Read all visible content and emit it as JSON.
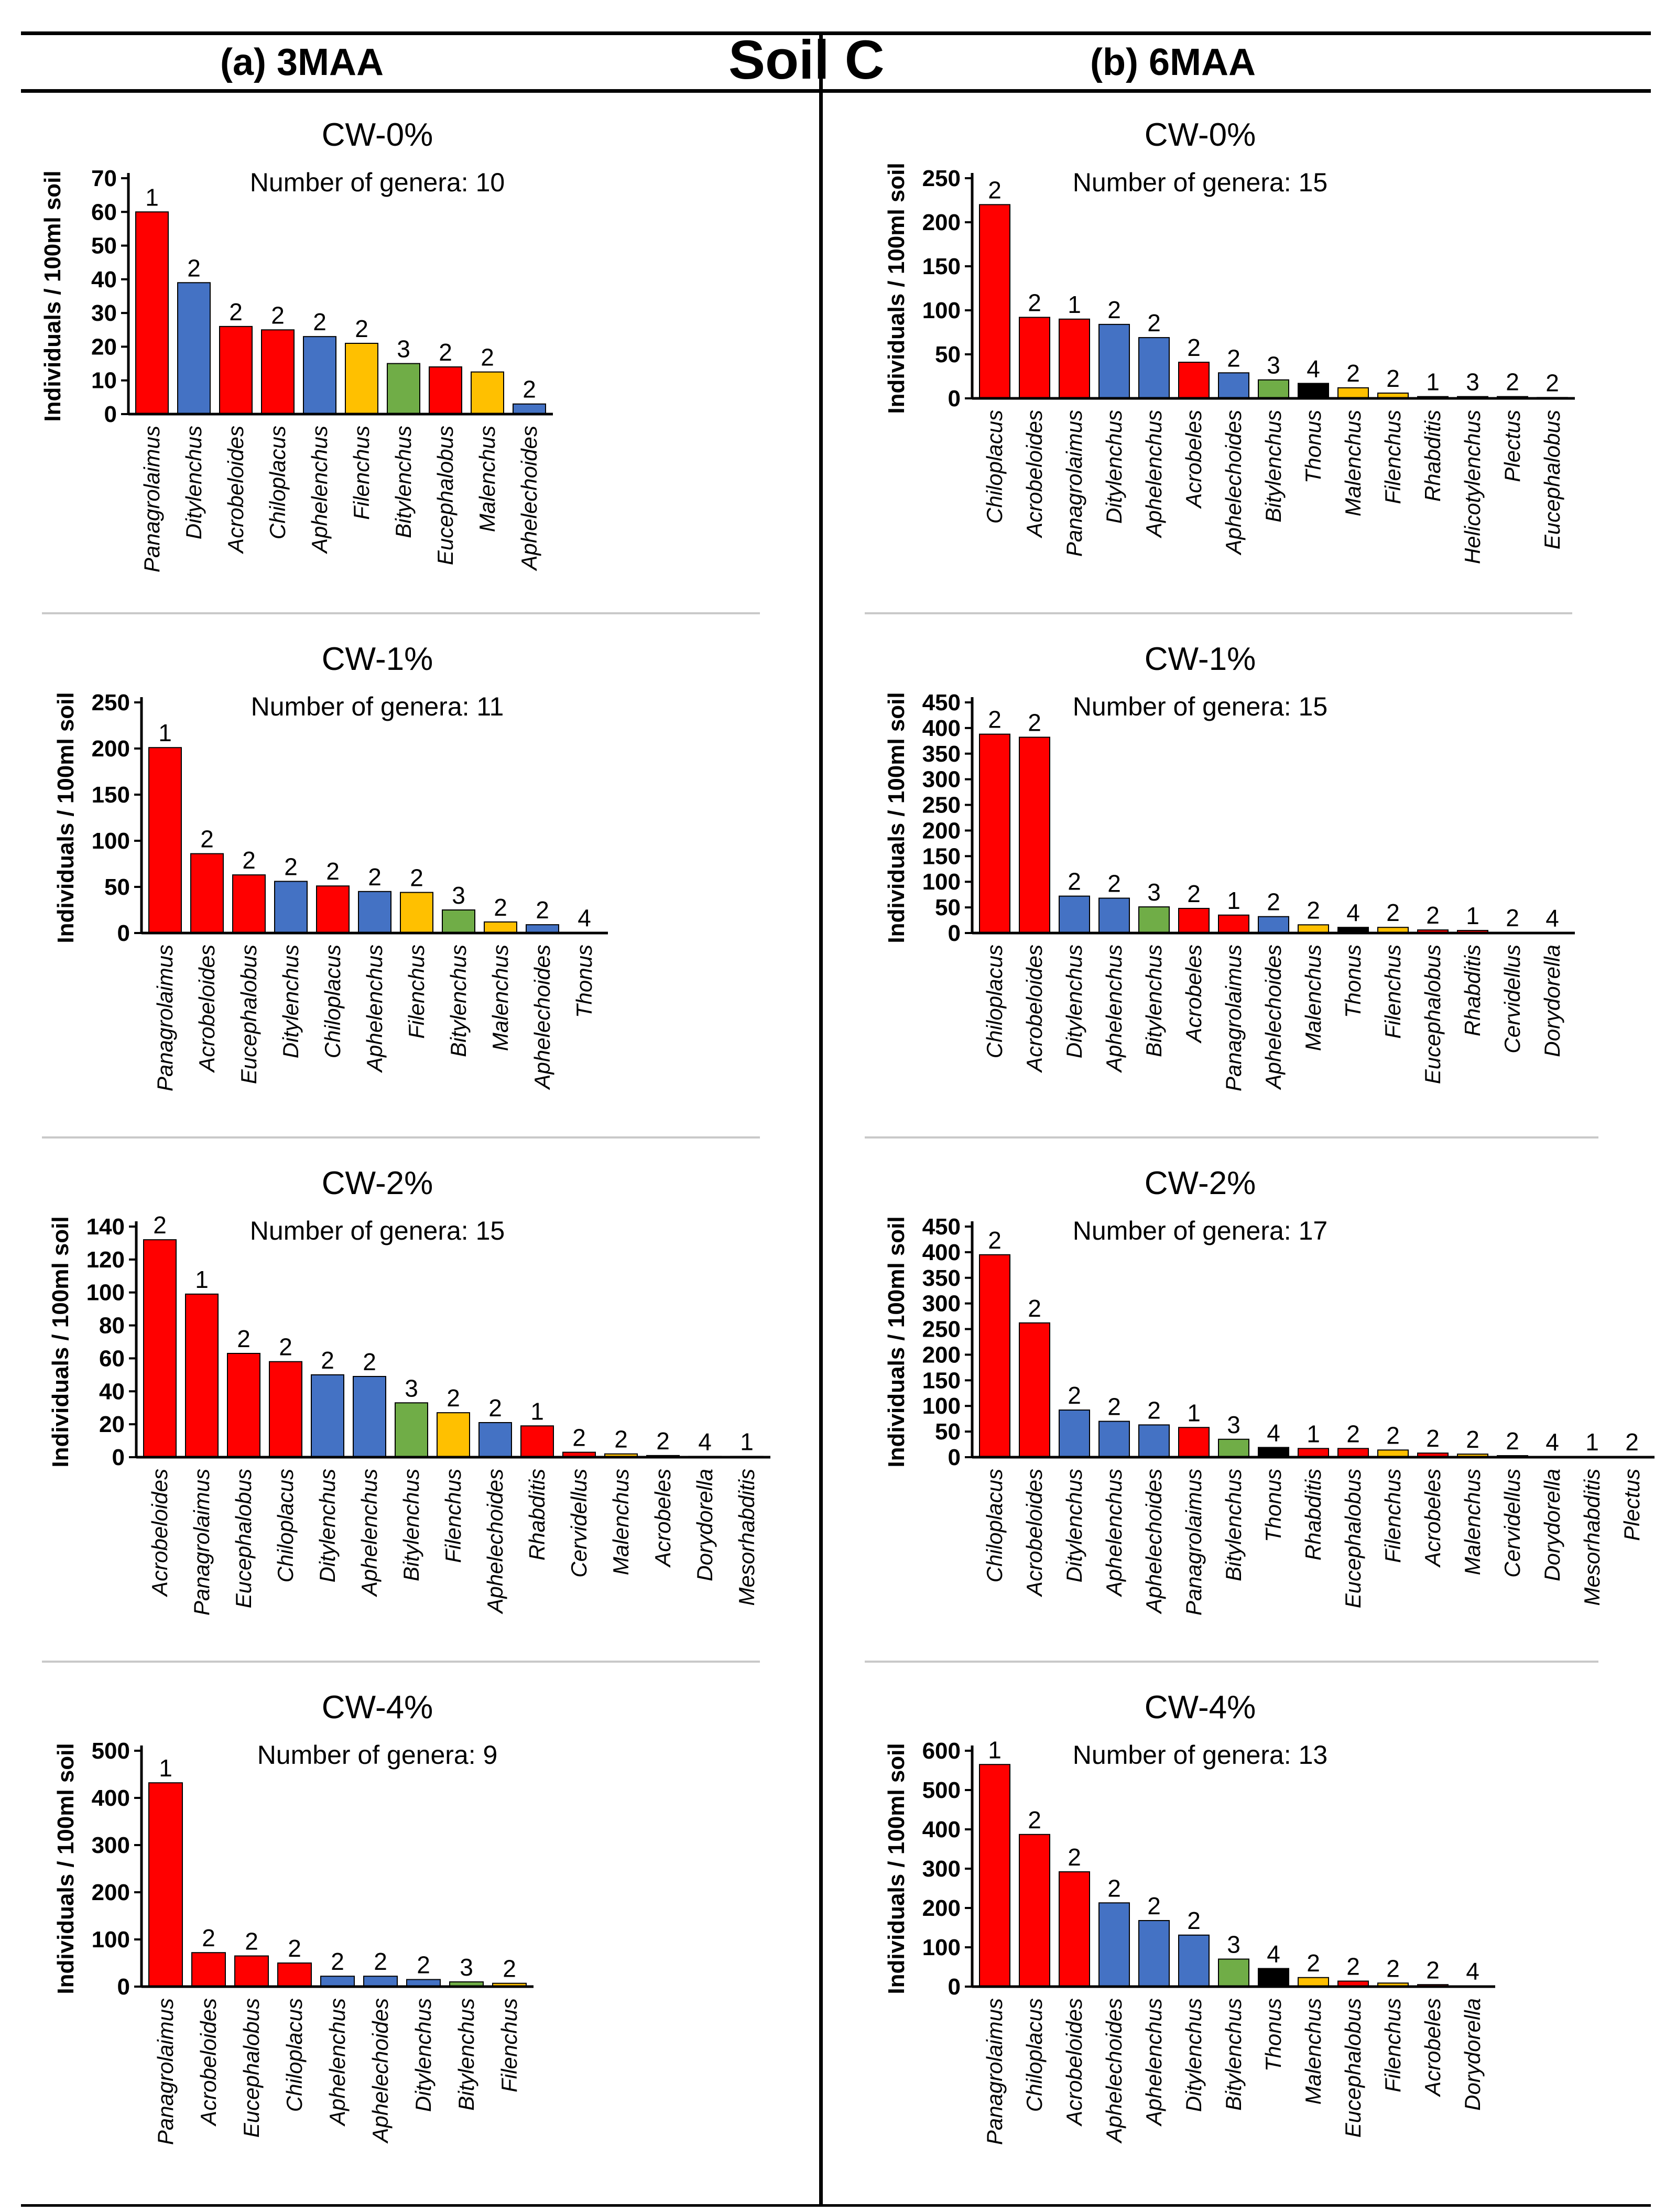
{
  "header": {
    "left": "(a)  3MAA",
    "center": "Soil C",
    "right": "(b)  6MAA"
  },
  "colors": {
    "1": "#ff0000",
    "2": "#ff0000",
    "3": "#70ad47",
    "4": "#000000",
    "blue": "#4472c4",
    "orange": "#ffc000"
  },
  "chart_data": [
    {
      "type": "bar",
      "title": "CW-0%",
      "subtitle": "Number of genera: 10",
      "ylabel": "Individuals / 100ml soil",
      "ylim": [
        0,
        70
      ],
      "ytick_step": 10,
      "categories": [
        "Panagrolaimus",
        "Ditylenchus",
        "Acrobeloides",
        "Chiloplacus",
        "Aphelenchus",
        "Filenchus",
        "Bitylenchus",
        "Eucephalobus",
        "Malenchus",
        "Aphelechoides"
      ],
      "values": [
        60,
        39,
        26,
        25,
        23,
        21,
        15,
        14,
        12.5,
        3
      ],
      "data_labels": [
        "1",
        "2",
        "2",
        "2",
        "2",
        "2",
        "3",
        "2",
        "2",
        "2"
      ],
      "bar_colors": [
        "red",
        "blue",
        "red",
        "red",
        "blue",
        "orange",
        "green",
        "red",
        "orange",
        "blue"
      ]
    },
    {
      "type": "bar",
      "title": "CW-0%",
      "subtitle": "Number of genera: 15",
      "ylabel": "Individuals / 100ml soil",
      "ylim": [
        0,
        250
      ],
      "ytick_step": 50,
      "categories": [
        "Chiloplacus",
        "Acrobeloides",
        "Panagrolaimus",
        "Ditylenchus",
        "Aphelenchus",
        "Acrobeles",
        "Aphelechoides",
        "Bitylenchus",
        "Thonus",
        "Malenchus",
        "Filenchus",
        "Rhabditis",
        "Helicotylenchus",
        "Plectus",
        "Eucephalobus"
      ],
      "values": [
        220,
        92,
        90,
        84,
        69,
        41,
        29,
        21,
        17,
        12,
        6,
        2,
        2,
        2,
        1
      ],
      "data_labels": [
        "2",
        "2",
        "1",
        "2",
        "2",
        "2",
        "2",
        "3",
        "4",
        "2",
        "2",
        "1",
        "3",
        "2",
        "2"
      ],
      "bar_colors": [
        "red",
        "red",
        "red",
        "blue",
        "blue",
        "red",
        "blue",
        "green",
        "black",
        "orange",
        "orange",
        "red",
        "green",
        "red",
        "red"
      ]
    },
    {
      "type": "bar",
      "title": "CW-1%",
      "subtitle": "Number of genera: 11",
      "ylabel": "Individuals / 100ml soil",
      "ylim": [
        0,
        250
      ],
      "ytick_step": 50,
      "categories": [
        "Panagrolaimus",
        "Acrobeloides",
        "Eucephalobus",
        "Ditylenchus",
        "Chiloplacus",
        "Aphelenchus",
        "Filenchus",
        "Bitylenchus",
        "Malenchus",
        "Aphelechoides",
        "Thonus"
      ],
      "values": [
        201,
        86,
        63,
        56,
        51,
        45,
        44,
        25,
        12,
        9,
        0.5
      ],
      "data_labels": [
        "1",
        "2",
        "2",
        "2",
        "2",
        "2",
        "2",
        "3",
        "2",
        "2",
        "4"
      ],
      "bar_colors": [
        "red",
        "red",
        "red",
        "blue",
        "red",
        "blue",
        "orange",
        "green",
        "orange",
        "blue",
        "black"
      ]
    },
    {
      "type": "bar",
      "title": "CW-1%",
      "subtitle": "Number of genera: 15",
      "ylabel": "Individuals / 100ml soil",
      "ylim": [
        0,
        450
      ],
      "ytick_step": 50,
      "categories": [
        "Chiloplacus",
        "Acrobeloides",
        "Ditylenchus",
        "Aphelenchus",
        "Bitylenchus",
        "Acrobeles",
        "Panagrolaimus",
        "Aphelechoides",
        "Malenchus",
        "Thonus",
        "Filenchus",
        "Eucephalobus",
        "Rhabditis",
        "Cervidellus",
        "Dorydorella"
      ],
      "values": [
        388,
        382,
        72,
        68,
        51,
        48,
        35,
        32,
        16,
        11,
        11,
        6,
        5,
        1,
        0.5
      ],
      "data_labels": [
        "2",
        "2",
        "2",
        "2",
        "3",
        "2",
        "1",
        "2",
        "2",
        "4",
        "2",
        "2",
        "1",
        "2",
        "4"
      ],
      "bar_colors": [
        "red",
        "red",
        "blue",
        "blue",
        "green",
        "red",
        "red",
        "blue",
        "orange",
        "black",
        "orange",
        "red",
        "red",
        "red",
        "black"
      ]
    },
    {
      "type": "bar",
      "title": "CW-2%",
      "subtitle": "Number of genera: 15",
      "ylabel": "Individuals / 100ml soil",
      "ylim": [
        0,
        140
      ],
      "ytick_step": 20,
      "categories": [
        "Acrobeloides",
        "Panagrolaimus",
        "Eucephalobus",
        "Chiloplacus",
        "Ditylenchus",
        "Aphelenchus",
        "Bitylenchus",
        "Filenchus",
        "Aphelechoides",
        "Rhabditis",
        "Cervidellus",
        "Malenchus",
        "Acrobeles",
        "Dorydorella",
        "Mesorhabditis"
      ],
      "values": [
        132,
        99,
        63,
        58,
        50,
        49,
        33,
        27,
        21,
        19,
        3,
        2,
        1,
        0.5,
        0.5
      ],
      "data_labels": [
        "2",
        "1",
        "2",
        "2",
        "2",
        "2",
        "3",
        "2",
        "2",
        "1",
        "2",
        "2",
        "2",
        "4",
        "1"
      ],
      "bar_colors": [
        "red",
        "red",
        "red",
        "red",
        "blue",
        "blue",
        "green",
        "orange",
        "blue",
        "red",
        "red",
        "orange",
        "red",
        "black",
        "red"
      ]
    },
    {
      "type": "bar",
      "title": "CW-2%",
      "subtitle": "Number of genera: 17",
      "ylabel": "Individuals / 100ml soil",
      "ylim": [
        0,
        450
      ],
      "ytick_step": 50,
      "categories": [
        "Chiloplacus",
        "Acrobeloides",
        "Ditylenchus",
        "Aphelenchus",
        "Aphelechoides",
        "Panagrolaimus",
        "Bitylenchus",
        "Thonus",
        "Rhabditis",
        "Eucephalobus",
        "Filenchus",
        "Acrobeles",
        "Malenchus",
        "Cervidellus",
        "Dorydorella",
        "Mesorhabditis",
        "Plectus"
      ],
      "values": [
        395,
        262,
        92,
        70,
        63,
        58,
        35,
        19,
        17,
        17,
        14,
        8,
        6,
        3,
        1,
        1,
        1
      ],
      "data_labels": [
        "2",
        "2",
        "2",
        "2",
        "2",
        "1",
        "3",
        "4",
        "1",
        "2",
        "2",
        "2",
        "2",
        "2",
        "4",
        "1",
        "2"
      ],
      "bar_colors": [
        "red",
        "red",
        "blue",
        "blue",
        "blue",
        "red",
        "green",
        "black",
        "red",
        "red",
        "orange",
        "red",
        "orange",
        "red",
        "black",
        "red",
        "red"
      ]
    },
    {
      "type": "bar",
      "title": "CW-4%",
      "subtitle": "Number of genera: 9",
      "ylabel": "Individuals / 100ml soil",
      "ylim": [
        0,
        500
      ],
      "ytick_step": 100,
      "categories": [
        "Panagrolaimus",
        "Acrobeloides",
        "Eucephalobus",
        "Chiloplacus",
        "Aphelenchus",
        "Aphelechoides",
        "Ditylenchus",
        "Bitylenchus",
        "Filenchus"
      ],
      "values": [
        432,
        72,
        65,
        50,
        22,
        22,
        15,
        10,
        7
      ],
      "data_labels": [
        "1",
        "2",
        "2",
        "2",
        "2",
        "2",
        "2",
        "3",
        "2"
      ],
      "bar_colors": [
        "red",
        "red",
        "red",
        "red",
        "blue",
        "blue",
        "blue",
        "green",
        "orange"
      ]
    },
    {
      "type": "bar",
      "title": "CW-4%",
      "subtitle": "Number of genera: 13",
      "ylabel": "Individuals / 100ml soil",
      "ylim": [
        0,
        600
      ],
      "ytick_step": 100,
      "categories": [
        "Panagrolaimus",
        "Chiloplacus",
        "Acrobeloides",
        "Aphelechoides",
        "Aphelenchus",
        "Ditylenchus",
        "Bitylenchus",
        "Thonus",
        "Malenchus",
        "Eucephalobus",
        "Filenchus",
        "Acrobeles",
        "Dorydorella"
      ],
      "values": [
        565,
        387,
        292,
        213,
        168,
        131,
        70,
        46,
        23,
        14,
        9,
        5,
        2
      ],
      "data_labels": [
        "1",
        "2",
        "2",
        "2",
        "2",
        "2",
        "3",
        "4",
        "2",
        "2",
        "2",
        "2",
        "4"
      ],
      "bar_colors": [
        "red",
        "red",
        "red",
        "blue",
        "blue",
        "blue",
        "green",
        "black",
        "orange",
        "red",
        "orange",
        "red",
        "black"
      ]
    }
  ]
}
